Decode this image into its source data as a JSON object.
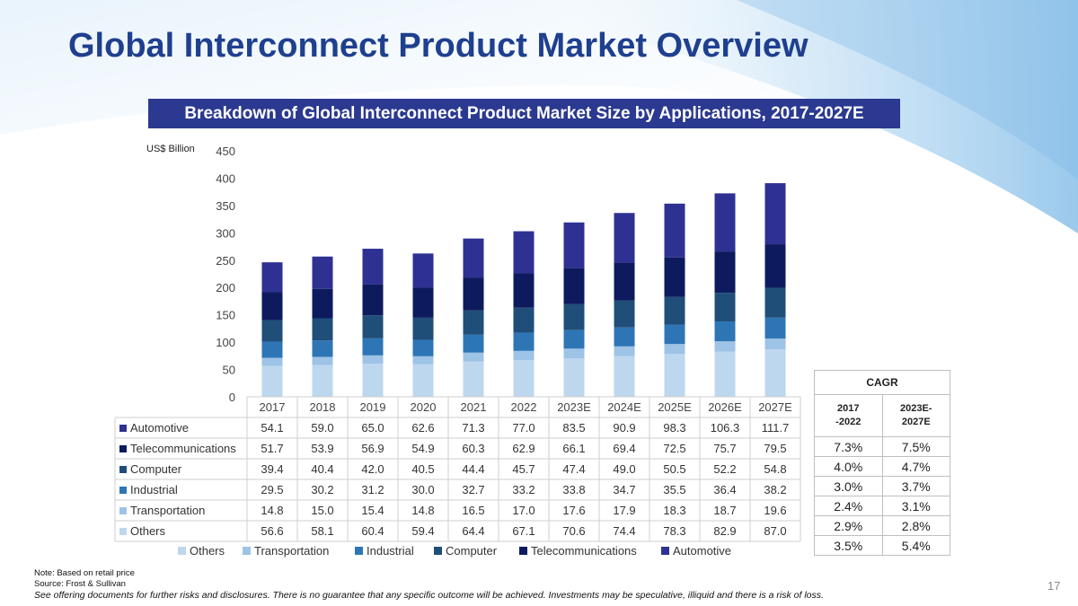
{
  "page": {
    "title": "Global Interconnect Product Market Overview",
    "subtitle": "Breakdown of Global Interconnect Product Market Size by Applications, 2017-2027E",
    "unit_label": "US$ Billion",
    "page_number": "17",
    "note": "Note: Based on retail price",
    "source": "Source: Frost & Sullivan",
    "disclaimer": "See offering documents for further risks and disclosures. There is no guarantee that any specific outcome will be achieved. Investments may be speculative, illiquid and there is a risk of loss."
  },
  "colors": {
    "title": "#1f3f8f",
    "band": "#2b3990",
    "Others": "#bdd7ee",
    "Transportation": "#9dc3e6",
    "Industrial": "#2e75b6",
    "Computer": "#1f4e79",
    "Telecommunications": "#0d1b5e",
    "Automotive": "#2e3192"
  },
  "chart_data": {
    "type": "bar",
    "stacked": true,
    "title": "Breakdown of Global Interconnect Product Market Size by Applications, 2017-2027E",
    "ylabel": "US$ Billion",
    "ylim": [
      0,
      450
    ],
    "yticks": [
      0,
      50,
      100,
      150,
      200,
      250,
      300,
      350,
      400,
      450
    ],
    "categories": [
      "2017",
      "2018",
      "2019",
      "2020",
      "2021",
      "2022",
      "2023E",
      "2024E",
      "2025E",
      "2026E",
      "2027E"
    ],
    "series": [
      {
        "name": "Others",
        "values": [
          56.6,
          58.1,
          60.4,
          59.4,
          64.4,
          67.1,
          70.6,
          74.4,
          78.3,
          82.9,
          87.0
        ]
      },
      {
        "name": "Transportation",
        "values": [
          14.8,
          15.0,
          15.4,
          14.8,
          16.5,
          17.0,
          17.6,
          17.9,
          18.3,
          18.7,
          19.6
        ]
      },
      {
        "name": "Industrial",
        "values": [
          29.5,
          30.2,
          31.2,
          30.0,
          32.7,
          33.2,
          33.8,
          34.7,
          35.5,
          36.4,
          38.2
        ]
      },
      {
        "name": "Computer",
        "values": [
          39.4,
          40.4,
          42.0,
          40.5,
          44.4,
          45.7,
          47.4,
          49.0,
          50.5,
          52.2,
          54.8
        ]
      },
      {
        "name": "Telecommunications",
        "values": [
          51.7,
          53.9,
          56.9,
          54.9,
          60.3,
          62.9,
          66.1,
          69.4,
          72.5,
          75.7,
          79.5
        ]
      },
      {
        "name": "Automotive",
        "values": [
          54.1,
          59.0,
          65.0,
          62.6,
          71.3,
          77.0,
          83.5,
          90.9,
          98.3,
          106.3,
          111.7
        ]
      }
    ],
    "table_row_order": [
      "Automotive",
      "Telecommunications",
      "Computer",
      "Industrial",
      "Transportation",
      "Others"
    ],
    "legend_order": [
      "Others",
      "Transportation",
      "Industrial",
      "Computer",
      "Telecommunications",
      "Automotive"
    ],
    "legend_position": "bottom"
  },
  "cagr": {
    "header": "CAGR",
    "columns": [
      "2017\n-2022",
      "2023E-\n2027E"
    ],
    "rows": [
      [
        "7.3%",
        "7.5%"
      ],
      [
        "4.0%",
        "4.7%"
      ],
      [
        "3.0%",
        "3.7%"
      ],
      [
        "2.4%",
        "3.1%"
      ],
      [
        "2.9%",
        "2.8%"
      ],
      [
        "3.5%",
        "5.4%"
      ]
    ]
  }
}
